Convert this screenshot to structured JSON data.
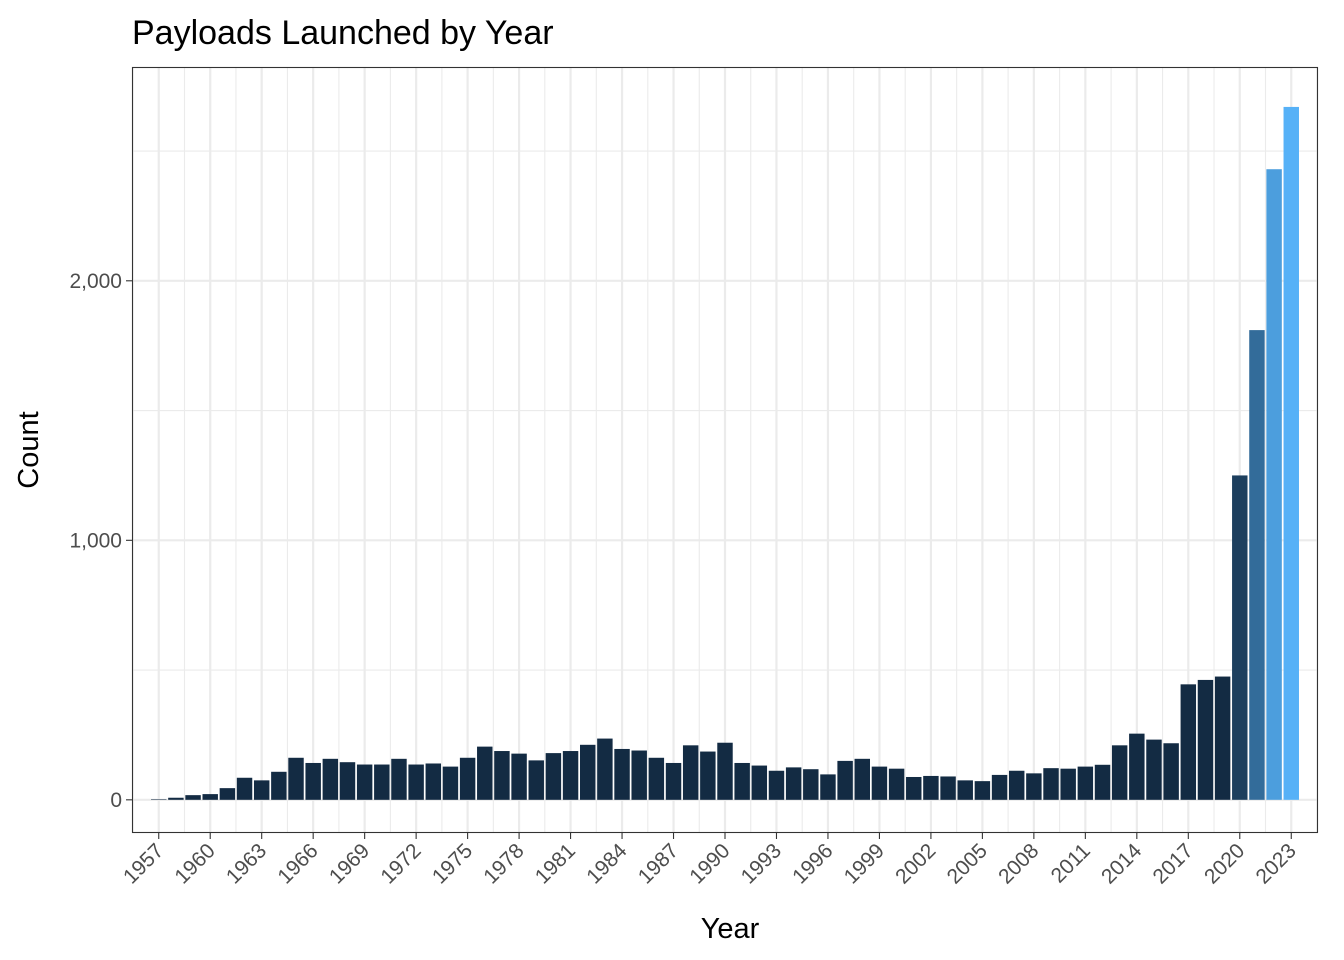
{
  "chart_data": {
    "type": "bar",
    "title": "Payloads Launched by Year",
    "xlabel": "Year",
    "ylabel": "Count",
    "ylim": [
      -124,
      2820
    ],
    "y_ticks": [
      0,
      1000,
      2000
    ],
    "y_tick_labels": [
      "0",
      "1,000",
      "2,000"
    ],
    "x_tick_labels": [
      "1957",
      "1960",
      "1963",
      "1966",
      "1969",
      "1972",
      "1975",
      "1978",
      "1981",
      "1984",
      "1987",
      "1990",
      "1993",
      "1996",
      "1999",
      "2002",
      "2005",
      "2008",
      "2011",
      "2014",
      "2017",
      "2020",
      "2023"
    ],
    "grid": true,
    "legend": "none",
    "categories": [
      1957,
      1958,
      1959,
      1960,
      1961,
      1962,
      1963,
      1964,
      1965,
      1966,
      1967,
      1968,
      1969,
      1970,
      1971,
      1972,
      1973,
      1974,
      1975,
      1976,
      1977,
      1978,
      1979,
      1980,
      1981,
      1982,
      1983,
      1984,
      1985,
      1986,
      1987,
      1988,
      1989,
      1990,
      1991,
      1992,
      1993,
      1994,
      1995,
      1996,
      1997,
      1998,
      1999,
      2000,
      2001,
      2002,
      2003,
      2004,
      2005,
      2006,
      2007,
      2008,
      2009,
      2010,
      2011,
      2012,
      2013,
      2014,
      2015,
      2016,
      2017,
      2018,
      2019,
      2020,
      2021,
      2022,
      2023
    ],
    "values": [
      2,
      8,
      18,
      22,
      45,
      85,
      75,
      108,
      162,
      142,
      158,
      145,
      136,
      136,
      158,
      136,
      140,
      128,
      162,
      205,
      188,
      178,
      152,
      180,
      188,
      212,
      236,
      196,
      190,
      162,
      142,
      210,
      186,
      220,
      142,
      132,
      112,
      125,
      118,
      98,
      150,
      158,
      128,
      120,
      88,
      92,
      90,
      75,
      72,
      96,
      112,
      102,
      122,
      120,
      128,
      135,
      210,
      255,
      232,
      218,
      445,
      462,
      475,
      1250,
      1810,
      2430,
      2670
    ],
    "colors": {
      "dark": "#132b43",
      "light": "#56b1f7",
      "color_scale_range": [
        1000,
        2670
      ]
    }
  }
}
